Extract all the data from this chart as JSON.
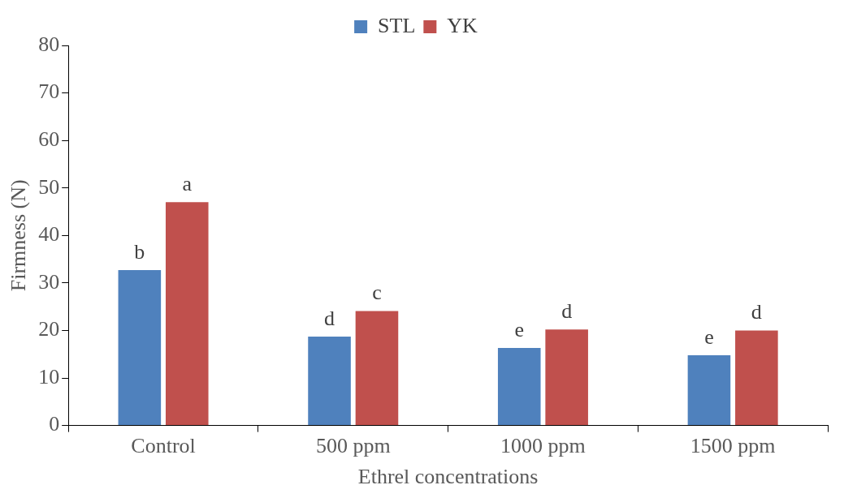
{
  "chart_data": {
    "type": "bar",
    "xlabel": "Ethrel concentrations",
    "ylabel": "Firmness (N)",
    "categories": [
      "Control",
      "500 ppm",
      "1000 ppm",
      "1500 ppm"
    ],
    "series": [
      {
        "name": "STL",
        "color": "#4f81bd",
        "values": [
          32.7,
          18.7,
          16.3,
          14.8
        ],
        "value_labels": [
          "b",
          "d",
          "e",
          "e"
        ]
      },
      {
        "name": "YK",
        "color": "#c0504d",
        "values": [
          47.0,
          24.1,
          20.2,
          20.0
        ],
        "value_labels": [
          "a",
          "c",
          "d",
          "d"
        ]
      }
    ],
    "ylim": [
      0,
      80
    ],
    "yticks": [
      0,
      10,
      20,
      30,
      40,
      50,
      60,
      70,
      80
    ],
    "grid": false,
    "legend": "top"
  }
}
